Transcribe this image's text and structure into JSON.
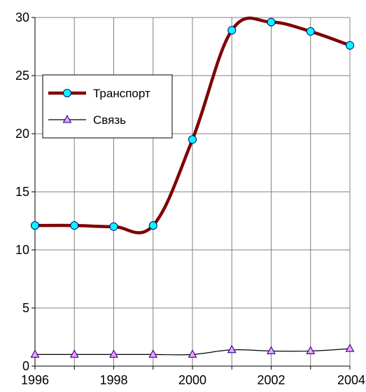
{
  "chart_data": {
    "type": "line",
    "title": "",
    "xlabel": "",
    "ylabel": "",
    "xlim": [
      1996,
      2004
    ],
    "ylim": [
      0,
      30
    ],
    "x_ticks": [
      1996,
      1998,
      2000,
      2002,
      2004
    ],
    "y_ticks": [
      0,
      5,
      10,
      15,
      20,
      25,
      30
    ],
    "x_tick_labels": [
      "1996",
      "1998",
      "2000",
      "2002",
      "2004"
    ],
    "y_tick_labels": [
      "0",
      "5",
      "10",
      "15",
      "20",
      "25",
      "30"
    ],
    "grid": true,
    "legend_position": "left-middle",
    "series": [
      {
        "name": "Транспорт",
        "color": "#800000",
        "marker": "circle",
        "marker_color": "#00ffff",
        "x": [
          1996,
          1997,
          1998,
          1999,
          2000,
          2001,
          2002,
          2003,
          2004
        ],
        "values": [
          12.1,
          12.1,
          12.0,
          12.1,
          19.5,
          28.9,
          29.6,
          28.8,
          27.6
        ]
      },
      {
        "name": "Связь",
        "color": "#000000",
        "marker": "triangle",
        "marker_color": "#ff99ff",
        "x": [
          1996,
          1997,
          1998,
          1999,
          2000,
          2001,
          2002,
          2003,
          2004
        ],
        "values": [
          1.0,
          1.0,
          1.0,
          1.0,
          1.0,
          1.4,
          1.3,
          1.3,
          1.5
        ]
      }
    ]
  }
}
